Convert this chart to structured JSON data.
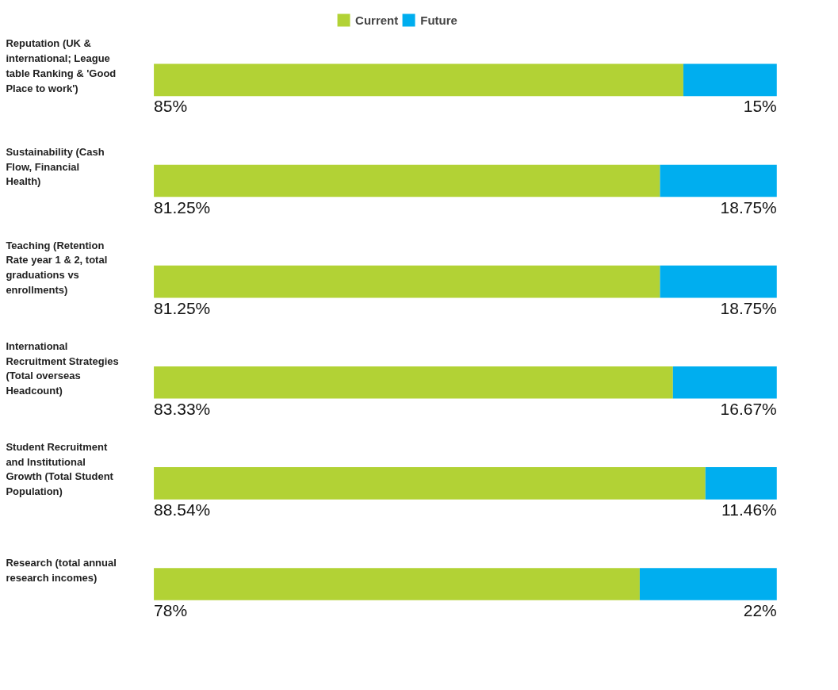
{
  "chart_data": {
    "type": "bar",
    "orientation": "horizontal",
    "stacked": true,
    "categories": [
      "Reputation (UK & international; League table Ranking & 'Good Place to work')",
      "Sustainability (Cash Flow, Financial Health)",
      "Teaching (Retention Rate year 1 & 2, total graduations vs enrollments)",
      "International Recruitment Strategies (Total overseas Headcount)",
      "Student Recruitment and Institutional Growth (Total Student Population)",
      "Research (total annual research incomes)"
    ],
    "series": [
      {
        "name": "Current",
        "color": "#b2d235",
        "values": [
          85,
          81.25,
          81.25,
          83.33,
          88.54,
          78
        ],
        "value_labels": [
          "85%",
          "81.25%",
          "81.25%",
          "83.33%",
          "88.54%",
          "78%"
        ]
      },
      {
        "name": "Future",
        "color": "#00aeef",
        "values": [
          15,
          18.75,
          18.75,
          16.67,
          11.46,
          22
        ],
        "value_labels": [
          "15%",
          "18.75%",
          "18.75%",
          "16.67%",
          "11.46%",
          "22%"
        ]
      }
    ],
    "legend": "top",
    "tick_labels": "y",
    "grid": false
  }
}
